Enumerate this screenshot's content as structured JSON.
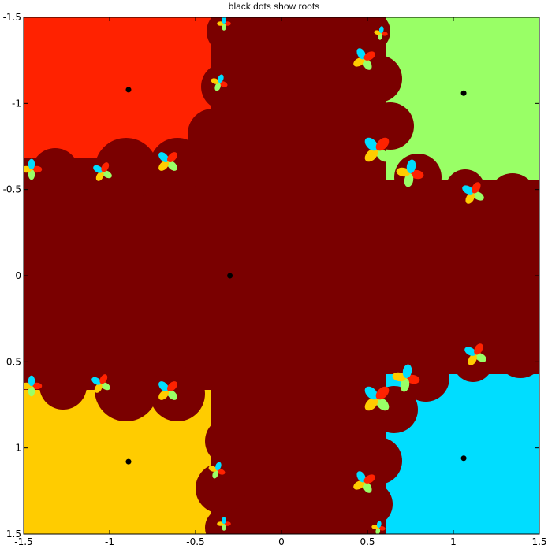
{
  "chart_data": {
    "type": "heatmap",
    "title": "black dots show roots",
    "xlabel": "",
    "ylabel": "",
    "xlim": [
      -1.5,
      1.5
    ],
    "ylim": [
      -1.5,
      1.5
    ],
    "y_reversed": true,
    "x_ticks": [
      "-1.5",
      "-1",
      "-0.5",
      "0",
      "0.5",
      "1",
      "1.5"
    ],
    "y_ticks": [
      "-1.5",
      "-1",
      "-0.5",
      "0",
      "0.5",
      "1",
      "1.5"
    ],
    "grid": false,
    "legend": "none",
    "colors": {
      "background_basin": "#7a0000",
      "top_left_basin": "#ff2200",
      "top_right_basin": "#99ff66",
      "bottom_left_basin": "#ffcc00",
      "bottom_right_basin": "#00ddff",
      "root_marker": "#000000"
    },
    "roots": [
      {
        "x": -0.3,
        "y": 0.0
      },
      {
        "x": -0.89,
        "y": -1.08
      },
      {
        "x": 1.06,
        "y": -1.06
      },
      {
        "x": -0.89,
        "y": 1.08
      },
      {
        "x": 1.06,
        "y": 1.06
      }
    ]
  }
}
